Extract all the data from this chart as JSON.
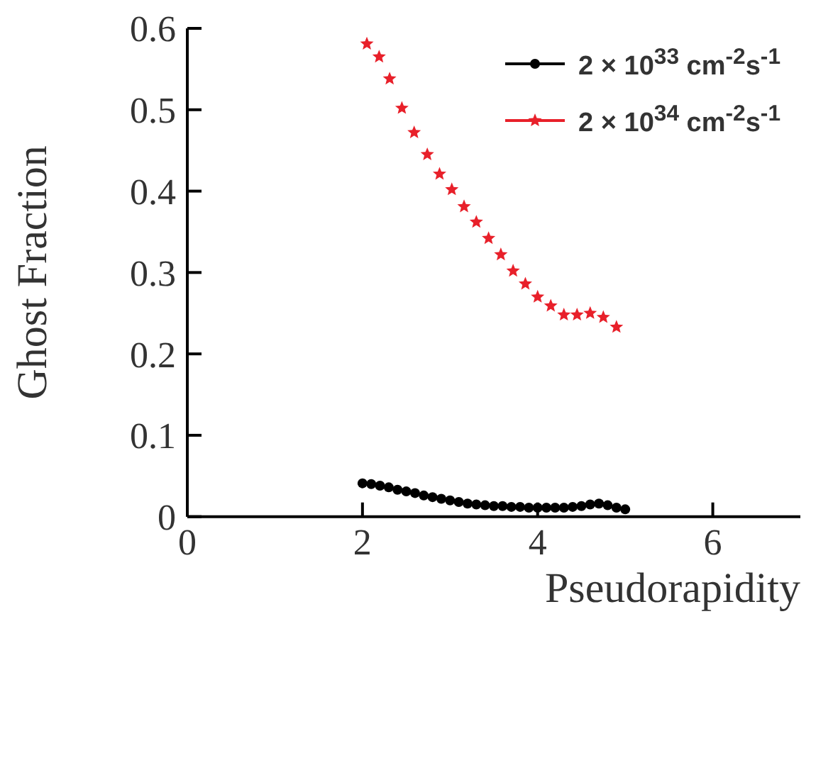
{
  "chart_data": {
    "type": "scatter",
    "xlabel": "Pseudorapidity",
    "ylabel": "Ghost Fraction",
    "xlim": [
      0,
      7
    ],
    "xticks": [
      0,
      2,
      4,
      6
    ],
    "ylim": [
      0,
      0.6
    ],
    "yticks": [
      0,
      0.1,
      0.2,
      0.3,
      0.4,
      0.5,
      0.6
    ],
    "grid": false,
    "legend": "top right",
    "series": [
      {
        "name": "2 × 10$^{33}$ cm$^{-2}$s$^{-1}$",
        "color": "#000000",
        "marker": "circle",
        "x": [
          2.0,
          2.1,
          2.2,
          2.3,
          2.4,
          2.5,
          2.6,
          2.7,
          2.8,
          2.9,
          3.0,
          3.1,
          3.2,
          3.3,
          3.4,
          3.5,
          3.6,
          3.7,
          3.8,
          3.9,
          4.0,
          4.1,
          4.2,
          4.3,
          4.4,
          4.5,
          4.6,
          4.7,
          4.8,
          4.9,
          5.0
        ],
        "values": [
          0.041,
          0.04,
          0.038,
          0.036,
          0.033,
          0.031,
          0.029,
          0.026,
          0.024,
          0.022,
          0.02,
          0.018,
          0.016,
          0.015,
          0.014,
          0.013,
          0.013,
          0.012,
          0.012,
          0.011,
          0.011,
          0.011,
          0.011,
          0.011,
          0.012,
          0.013,
          0.015,
          0.016,
          0.014,
          0.011,
          0.009
        ]
      },
      {
        "name": "2 × 10$^{34}$ cm$^{-2}$s$^{-1}$",
        "color": "#e8202a",
        "marker": "star",
        "x": [
          2.05,
          2.19,
          2.31,
          2.45,
          2.59,
          2.74,
          2.88,
          3.02,
          3.16,
          3.3,
          3.44,
          3.58,
          3.72,
          3.86,
          4.0,
          4.15,
          4.3,
          4.45,
          4.6,
          4.75,
          4.9
        ],
        "values": [
          0.581,
          0.565,
          0.538,
          0.502,
          0.472,
          0.445,
          0.421,
          0.402,
          0.381,
          0.362,
          0.342,
          0.322,
          0.302,
          0.286,
          0.27,
          0.259,
          0.248,
          0.248,
          0.25,
          0.245,
          0.233
        ]
      }
    ]
  }
}
